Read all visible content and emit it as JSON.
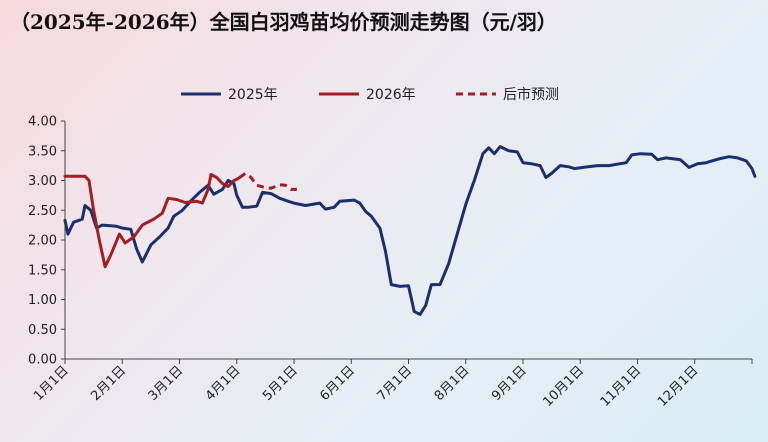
{
  "title": "（2025年-2026年）全国白羽鸡苗均价预测走势图（元/羽）",
  "colors": {
    "s2025": "#1b2f6b",
    "s2026": "#a51d24",
    "forecast": "#a51d24"
  },
  "chart_data": {
    "type": "line",
    "title": "（2025年-2026年）全国白羽鸡苗均价预测走势图（元/羽）",
    "xlabel": "",
    "ylabel": "",
    "ylim": [
      0,
      4
    ],
    "yticks": [
      "0.00",
      "0.50",
      "1.00",
      "1.50",
      "2.00",
      "2.50",
      "3.00",
      "3.50",
      "4.00"
    ],
    "xlim": [
      0,
      12
    ],
    "xticks": [
      {
        "label": "1月1日",
        "x": 0
      },
      {
        "label": "2月1日",
        "x": 1
      },
      {
        "label": "3月1日",
        "x": 2
      },
      {
        "label": "4月1日",
        "x": 3
      },
      {
        "label": "5月1日",
        "x": 4
      },
      {
        "label": "6月1日",
        "x": 5
      },
      {
        "label": "7月1日",
        "x": 6
      },
      {
        "label": "8月1日",
        "x": 7
      },
      {
        "label": "9月1日",
        "x": 8
      },
      {
        "label": "10月1日",
        "x": 9
      },
      {
        "label": "11月1日",
        "x": 10
      },
      {
        "label": "12月1日",
        "x": 11
      }
    ],
    "grid": false,
    "legend": "top",
    "series": [
      {
        "name": "2025年",
        "style": "solid",
        "points": [
          [
            0,
            2.33
          ],
          [
            0.05,
            2.1
          ],
          [
            0.15,
            2.3
          ],
          [
            0.3,
            2.35
          ],
          [
            0.35,
            2.58
          ],
          [
            0.45,
            2.5
          ],
          [
            0.55,
            2.2
          ],
          [
            0.65,
            2.25
          ],
          [
            0.9,
            2.23
          ],
          [
            1.0,
            2.2
          ],
          [
            1.15,
            2.18
          ],
          [
            1.25,
            1.85
          ],
          [
            1.35,
            1.63
          ],
          [
            1.5,
            1.92
          ],
          [
            1.65,
            2.05
          ],
          [
            1.8,
            2.2
          ],
          [
            1.9,
            2.4
          ],
          [
            2.05,
            2.5
          ],
          [
            2.2,
            2.66
          ],
          [
            2.35,
            2.8
          ],
          [
            2.5,
            2.92
          ],
          [
            2.6,
            2.77
          ],
          [
            2.75,
            2.85
          ],
          [
            2.85,
            3.0
          ],
          [
            2.95,
            2.95
          ],
          [
            3.0,
            2.75
          ],
          [
            3.1,
            2.55
          ],
          [
            3.2,
            2.55
          ],
          [
            3.35,
            2.57
          ],
          [
            3.45,
            2.8
          ],
          [
            3.6,
            2.78
          ],
          [
            3.75,
            2.7
          ],
          [
            3.9,
            2.65
          ],
          [
            4.0,
            2.62
          ],
          [
            4.2,
            2.58
          ],
          [
            4.45,
            2.62
          ],
          [
            4.55,
            2.52
          ],
          [
            4.7,
            2.55
          ],
          [
            4.8,
            2.65
          ],
          [
            5.05,
            2.67
          ],
          [
            5.15,
            2.62
          ],
          [
            5.25,
            2.48
          ],
          [
            5.35,
            2.4
          ],
          [
            5.5,
            2.2
          ],
          [
            5.6,
            1.8
          ],
          [
            5.7,
            1.25
          ],
          [
            5.85,
            1.22
          ],
          [
            6.0,
            1.23
          ],
          [
            6.1,
            0.8
          ],
          [
            6.2,
            0.75
          ],
          [
            6.3,
            0.9
          ],
          [
            6.4,
            1.25
          ],
          [
            6.55,
            1.25
          ],
          [
            6.7,
            1.6
          ],
          [
            6.85,
            2.1
          ],
          [
            7.0,
            2.6
          ],
          [
            7.15,
            3.0
          ],
          [
            7.3,
            3.45
          ],
          [
            7.4,
            3.55
          ],
          [
            7.5,
            3.45
          ],
          [
            7.6,
            3.57
          ],
          [
            7.75,
            3.5
          ],
          [
            7.9,
            3.48
          ],
          [
            8.0,
            3.3
          ],
          [
            8.15,
            3.28
          ],
          [
            8.3,
            3.25
          ],
          [
            8.4,
            3.05
          ],
          [
            8.5,
            3.12
          ],
          [
            8.65,
            3.25
          ],
          [
            8.8,
            3.23
          ],
          [
            8.9,
            3.2
          ],
          [
            9.05,
            3.22
          ],
          [
            9.3,
            3.25
          ],
          [
            9.5,
            3.25
          ],
          [
            9.8,
            3.3
          ],
          [
            9.9,
            3.43
          ],
          [
            10.05,
            3.45
          ],
          [
            10.25,
            3.44
          ],
          [
            10.35,
            3.35
          ],
          [
            10.5,
            3.38
          ],
          [
            10.75,
            3.35
          ],
          [
            10.9,
            3.22
          ],
          [
            11.05,
            3.28
          ],
          [
            11.2,
            3.3
          ],
          [
            11.3,
            3.33
          ],
          [
            11.45,
            3.37
          ],
          [
            11.6,
            3.4
          ],
          [
            11.75,
            3.38
          ],
          [
            11.9,
            3.33
          ],
          [
            12.0,
            3.2
          ],
          [
            12.05,
            3.07
          ]
        ]
      },
      {
        "name": "2026年",
        "style": "solid",
        "points": [
          [
            0,
            3.07
          ],
          [
            0.35,
            3.07
          ],
          [
            0.42,
            3.0
          ],
          [
            0.5,
            2.5
          ],
          [
            0.6,
            2.0
          ],
          [
            0.7,
            1.55
          ],
          [
            0.8,
            1.75
          ],
          [
            0.95,
            2.1
          ],
          [
            1.05,
            1.95
          ],
          [
            1.2,
            2.05
          ],
          [
            1.35,
            2.25
          ],
          [
            1.55,
            2.35
          ],
          [
            1.7,
            2.45
          ],
          [
            1.8,
            2.7
          ],
          [
            1.95,
            2.68
          ],
          [
            2.1,
            2.63
          ],
          [
            2.3,
            2.65
          ],
          [
            2.4,
            2.62
          ],
          [
            2.5,
            2.85
          ],
          [
            2.55,
            3.1
          ],
          [
            2.65,
            3.05
          ],
          [
            2.75,
            2.95
          ],
          [
            2.85,
            2.9
          ],
          [
            2.95,
            3.0
          ],
          [
            3.0,
            3.02
          ],
          [
            3.05,
            3.05
          ]
        ]
      },
      {
        "name": "后市预测",
        "style": "dashed",
        "points": [
          [
            3.05,
            3.05
          ],
          [
            3.15,
            3.12
          ],
          [
            3.25,
            3.05
          ],
          [
            3.35,
            2.92
          ],
          [
            3.5,
            2.88
          ],
          [
            3.6,
            2.87
          ],
          [
            3.75,
            2.93
          ],
          [
            3.85,
            2.92
          ],
          [
            3.95,
            2.85
          ],
          [
            4.05,
            2.85
          ]
        ]
      }
    ]
  }
}
